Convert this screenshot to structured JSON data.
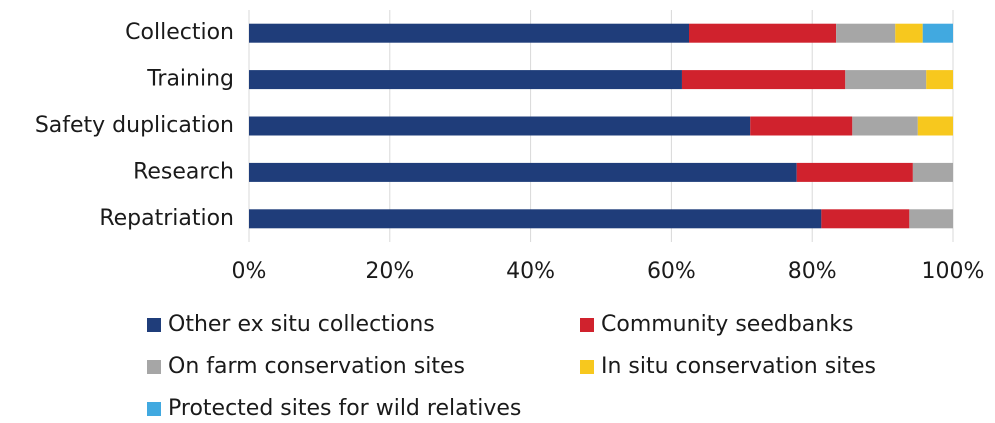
{
  "chart_data": {
    "type": "bar",
    "orientation": "horizontal",
    "stacked": true,
    "categories": [
      "Collection",
      "Training",
      "Safety duplication",
      "Research",
      "Repatriation"
    ],
    "series": [
      {
        "name": "Other ex situ collections",
        "color": "#1f3d7a",
        "values": [
          62.5,
          61.5,
          71.2,
          77.8,
          81.3
        ]
      },
      {
        "name": "Community seedbanks",
        "color": "#d0222d",
        "values": [
          20.9,
          23.2,
          14.5,
          16.5,
          12.5
        ]
      },
      {
        "name": "On farm conservation sites",
        "color": "#a6a6a6",
        "values": [
          8.4,
          11.5,
          9.3,
          5.7,
          6.2
        ]
      },
      {
        "name": "In situ conservation sites",
        "color": "#f7c81e",
        "values": [
          3.9,
          3.8,
          5.0,
          0,
          0
        ]
      },
      {
        "name": "Protected sites for wild relatives",
        "color": "#41a9e0",
        "values": [
          4.3,
          0,
          0,
          0,
          0
        ]
      }
    ],
    "xlim": [
      0,
      100
    ],
    "xticks": [
      {
        "value": 0,
        "label": "0%"
      },
      {
        "value": 20,
        "label": "20%"
      },
      {
        "value": 40,
        "label": "40%"
      },
      {
        "value": 60,
        "label": "60%"
      },
      {
        "value": 80,
        "label": "80%"
      },
      {
        "value": 100,
        "label": "100%"
      }
    ],
    "grid": true,
    "legend": "bottom"
  }
}
